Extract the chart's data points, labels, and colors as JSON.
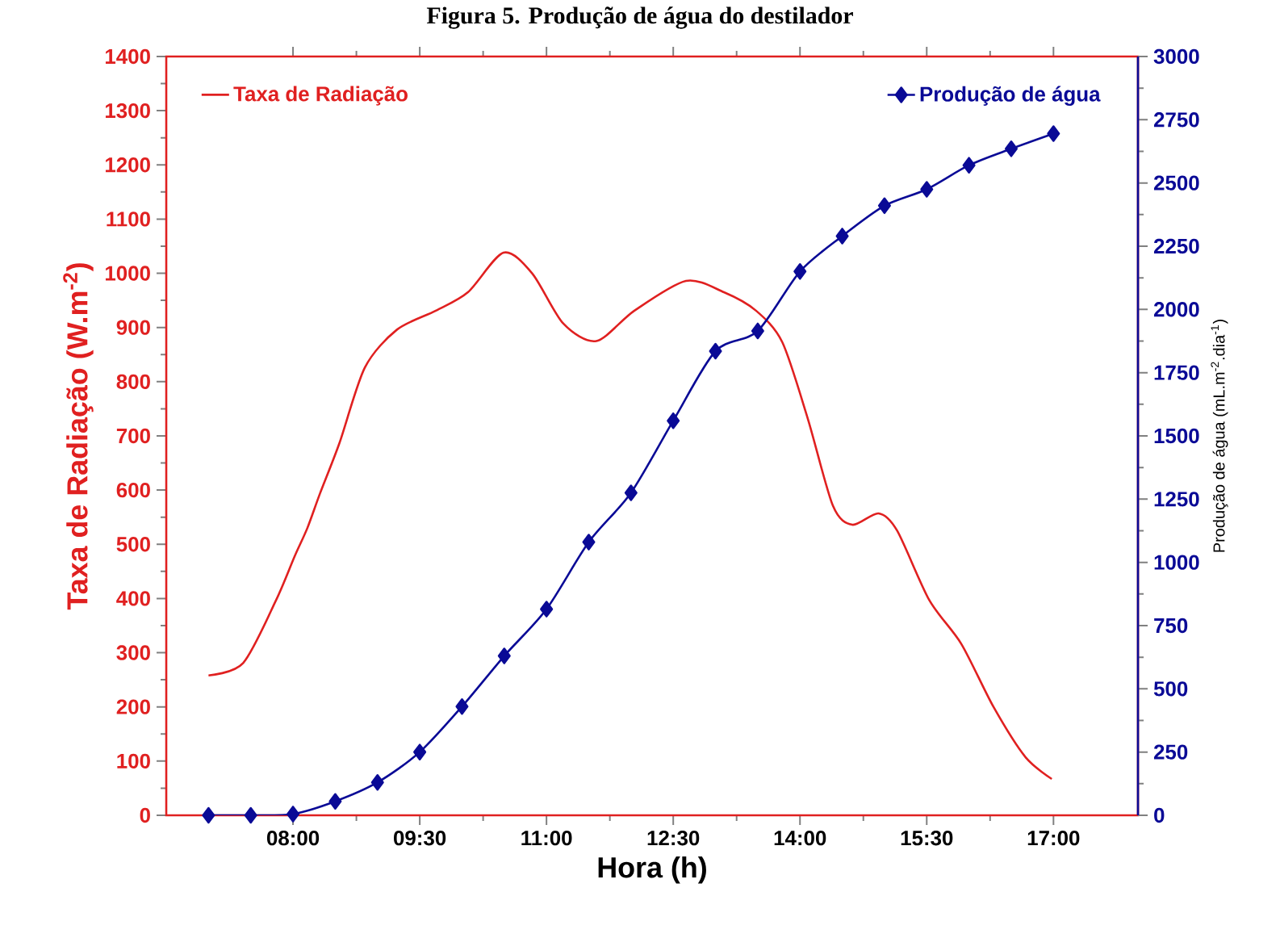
{
  "chart_data": {
    "type": "line",
    "title": "Figura 5. Produção de água do destilador",
    "xlabel": "Hora (h)",
    "ylabel": "Taxa de Radiação (W.m$^{-2}$)",
    "y2label": "Produção de água (mL.m$^{-2}$.dia$^{-1}$)",
    "xlim": [
      6.5,
      18
    ],
    "xticks": [
      {
        "value": 8,
        "label": "08:00"
      },
      {
        "value": 9.5,
        "label": "09:30"
      },
      {
        "value": 11,
        "label": "11:00"
      },
      {
        "value": 12.5,
        "label": "12:30"
      },
      {
        "value": 14,
        "label": "14:00"
      },
      {
        "value": 15.5,
        "label": "15:30"
      },
      {
        "value": 17,
        "label": "17:00"
      }
    ],
    "ylim": [
      0,
      1400
    ],
    "yticks": [
      0,
      100,
      200,
      300,
      400,
      500,
      600,
      700,
      800,
      900,
      1000,
      1100,
      1200,
      1300,
      1400
    ],
    "y2lim": [
      0,
      3000
    ],
    "y2ticks": [
      0,
      250,
      500,
      750,
      1000,
      1250,
      1500,
      1750,
      2000,
      2250,
      2500,
      2750,
      3000
    ],
    "legend": "top",
    "grid": false,
    "series": [
      {
        "name": "Taxa de Radiação",
        "color": "#e02020",
        "marker": "none",
        "axis": "y",
        "x": [
          7.0,
          7.41,
          7.8,
          8.02,
          8.17,
          8.32,
          8.55,
          8.85,
          9.23,
          9.69,
          10.07,
          10.49,
          10.83,
          11.2,
          11.59,
          12.04,
          12.65,
          13.1,
          13.48,
          13.79,
          14.09,
          14.39,
          14.62,
          14.93,
          15.15,
          15.53,
          15.91,
          16.29,
          16.67,
          16.98
        ],
        "values": [
          258,
          281,
          397,
          478,
          530,
          594,
          687,
          826,
          896,
          931,
          965,
          1038,
          1000,
          907,
          875,
          931,
          986,
          965,
          931,
          873,
          733,
          571,
          536,
          557,
          525,
          397,
          316,
          200,
          107,
          67
        ]
      },
      {
        "name": "Produção de água",
        "color": "#0a0a96",
        "marker": "diamond",
        "axis": "y2",
        "x": [
          7,
          7.5,
          8,
          8.5,
          9,
          9.5,
          10,
          10.5,
          11,
          11.5,
          12,
          12.5,
          13,
          13.5,
          14,
          14.5,
          15,
          15.5,
          16,
          16.5,
          17
        ],
        "values": [
          0,
          0,
          5,
          55,
          130,
          250,
          430,
          630,
          815,
          1080,
          1275,
          1560,
          1835,
          1915,
          2150,
          2290,
          2410,
          2475,
          2570,
          2635,
          2695
        ]
      }
    ]
  }
}
